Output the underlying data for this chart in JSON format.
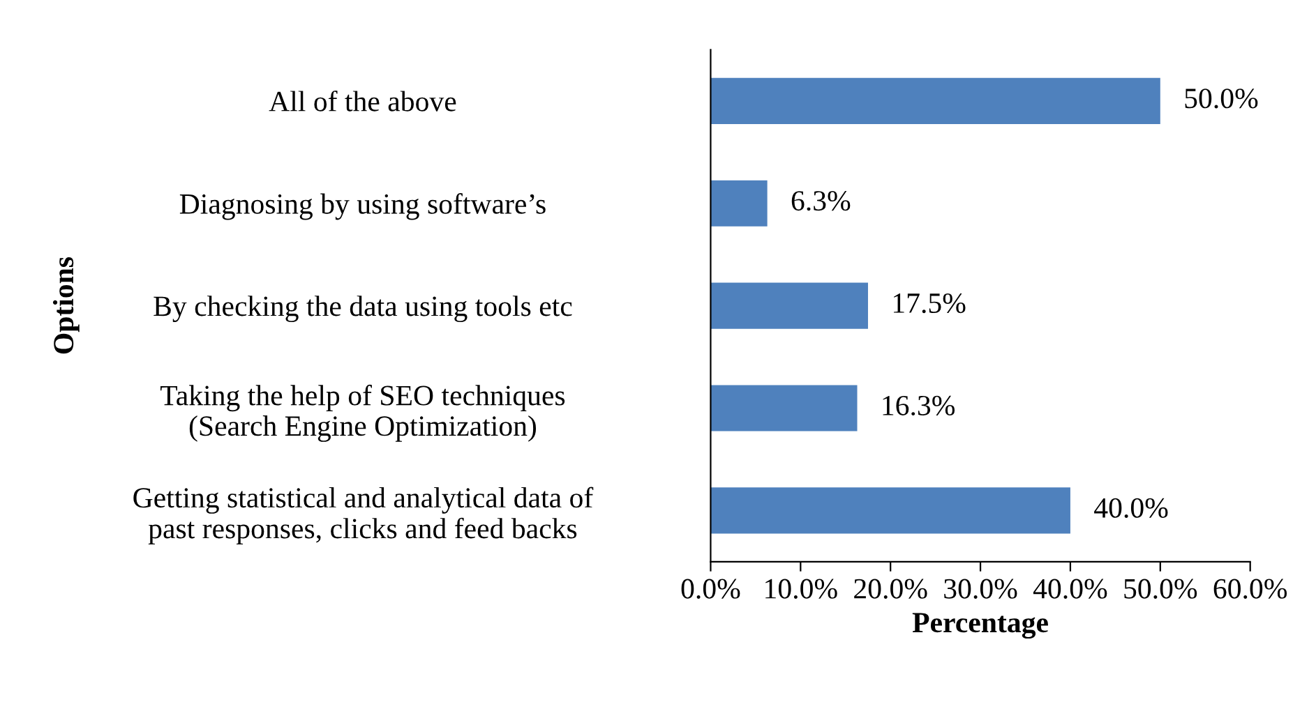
{
  "chart_data": {
    "type": "bar",
    "orientation": "horizontal",
    "categories": [
      "All of the above",
      "Diagnosing by using software’s",
      "By checking the data using tools etc",
      "Taking the help of SEO techniques\n(Search Engine Optimization)",
      "Getting statistical and analytical data of\npast responses, clicks and feed backs"
    ],
    "values": [
      50.0,
      6.3,
      17.5,
      16.3,
      40.0
    ],
    "value_labels": [
      "50.0%",
      "6.3%",
      "17.5%",
      "16.3%",
      "40.0%"
    ],
    "color": "#4f81bd",
    "xlim": [
      0,
      60
    ],
    "xticks": [
      {
        "value": 0,
        "label": "0.0%"
      },
      {
        "value": 10,
        "label": "10.0%"
      },
      {
        "value": 20,
        "label": "20.0%"
      },
      {
        "value": 30,
        "label": "30.0%"
      },
      {
        "value": 40,
        "label": "40.0%"
      },
      {
        "value": 50,
        "label": "50.0%"
      },
      {
        "value": 60,
        "label": "60.0%"
      }
    ],
    "xlabel": "Percentage",
    "ylabel": "Options",
    "grid": false,
    "legend": false
  }
}
